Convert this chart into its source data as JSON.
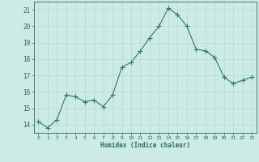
{
  "x": [
    0,
    1,
    2,
    3,
    4,
    5,
    6,
    7,
    8,
    9,
    10,
    11,
    12,
    13,
    14,
    15,
    16,
    17,
    18,
    19,
    20,
    21,
    22,
    23
  ],
  "y": [
    14.2,
    13.8,
    14.3,
    15.8,
    15.7,
    15.4,
    15.5,
    15.1,
    15.8,
    17.5,
    17.8,
    18.5,
    19.3,
    20.0,
    21.1,
    20.7,
    20.0,
    18.6,
    18.5,
    18.1,
    16.9,
    16.5,
    16.7,
    16.9
  ],
  "line_color": "#2d7a6a",
  "marker": "+",
  "marker_size": 4,
  "bg_color": "#cceae6",
  "grid_color": "#b8d8d4",
  "tick_color": "#2d6a5e",
  "xlabel": "Humidex (Indice chaleur)",
  "ylabel_ticks": [
    14,
    15,
    16,
    17,
    18,
    19,
    20,
    21
  ],
  "xlim": [
    -0.5,
    23.5
  ],
  "ylim": [
    13.5,
    21.5
  ]
}
